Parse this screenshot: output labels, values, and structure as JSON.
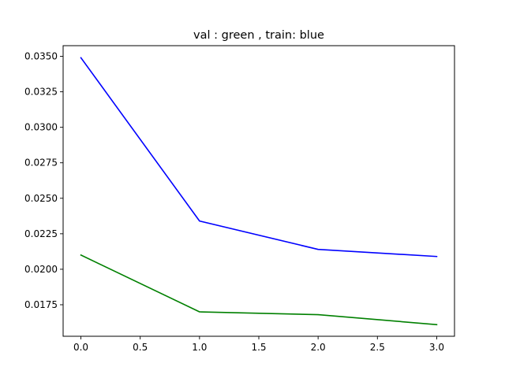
{
  "chart_data": {
    "type": "line",
    "title": "val : green , train: blue",
    "xlabel": "",
    "ylabel": "",
    "xlim": [
      -0.15,
      3.15
    ],
    "ylim": [
      0.01528,
      0.03575
    ],
    "xticks": [
      0.0,
      0.5,
      1.0,
      1.5,
      2.0,
      2.5,
      3.0
    ],
    "xtick_labels": [
      "0.0",
      "0.5",
      "1.0",
      "1.5",
      "2.0",
      "2.5",
      "3.0"
    ],
    "yticks": [
      0.0175,
      0.02,
      0.0225,
      0.025,
      0.0275,
      0.03,
      0.0325,
      0.035
    ],
    "ytick_labels": [
      "0.0175",
      "0.0200",
      "0.0225",
      "0.0250",
      "0.0275",
      "0.0300",
      "0.0325",
      "0.0350"
    ],
    "grid": false,
    "legend": "none",
    "series": [
      {
        "color": "#0000ff",
        "x": [
          0,
          1,
          2,
          3
        ],
        "y": [
          0.0349,
          0.0234,
          0.0214,
          0.0209
        ]
      },
      {
        "color": "#008000",
        "x": [
          0,
          1,
          2,
          3
        ],
        "y": [
          0.021,
          0.017,
          0.0168,
          0.0161
        ]
      }
    ]
  }
}
